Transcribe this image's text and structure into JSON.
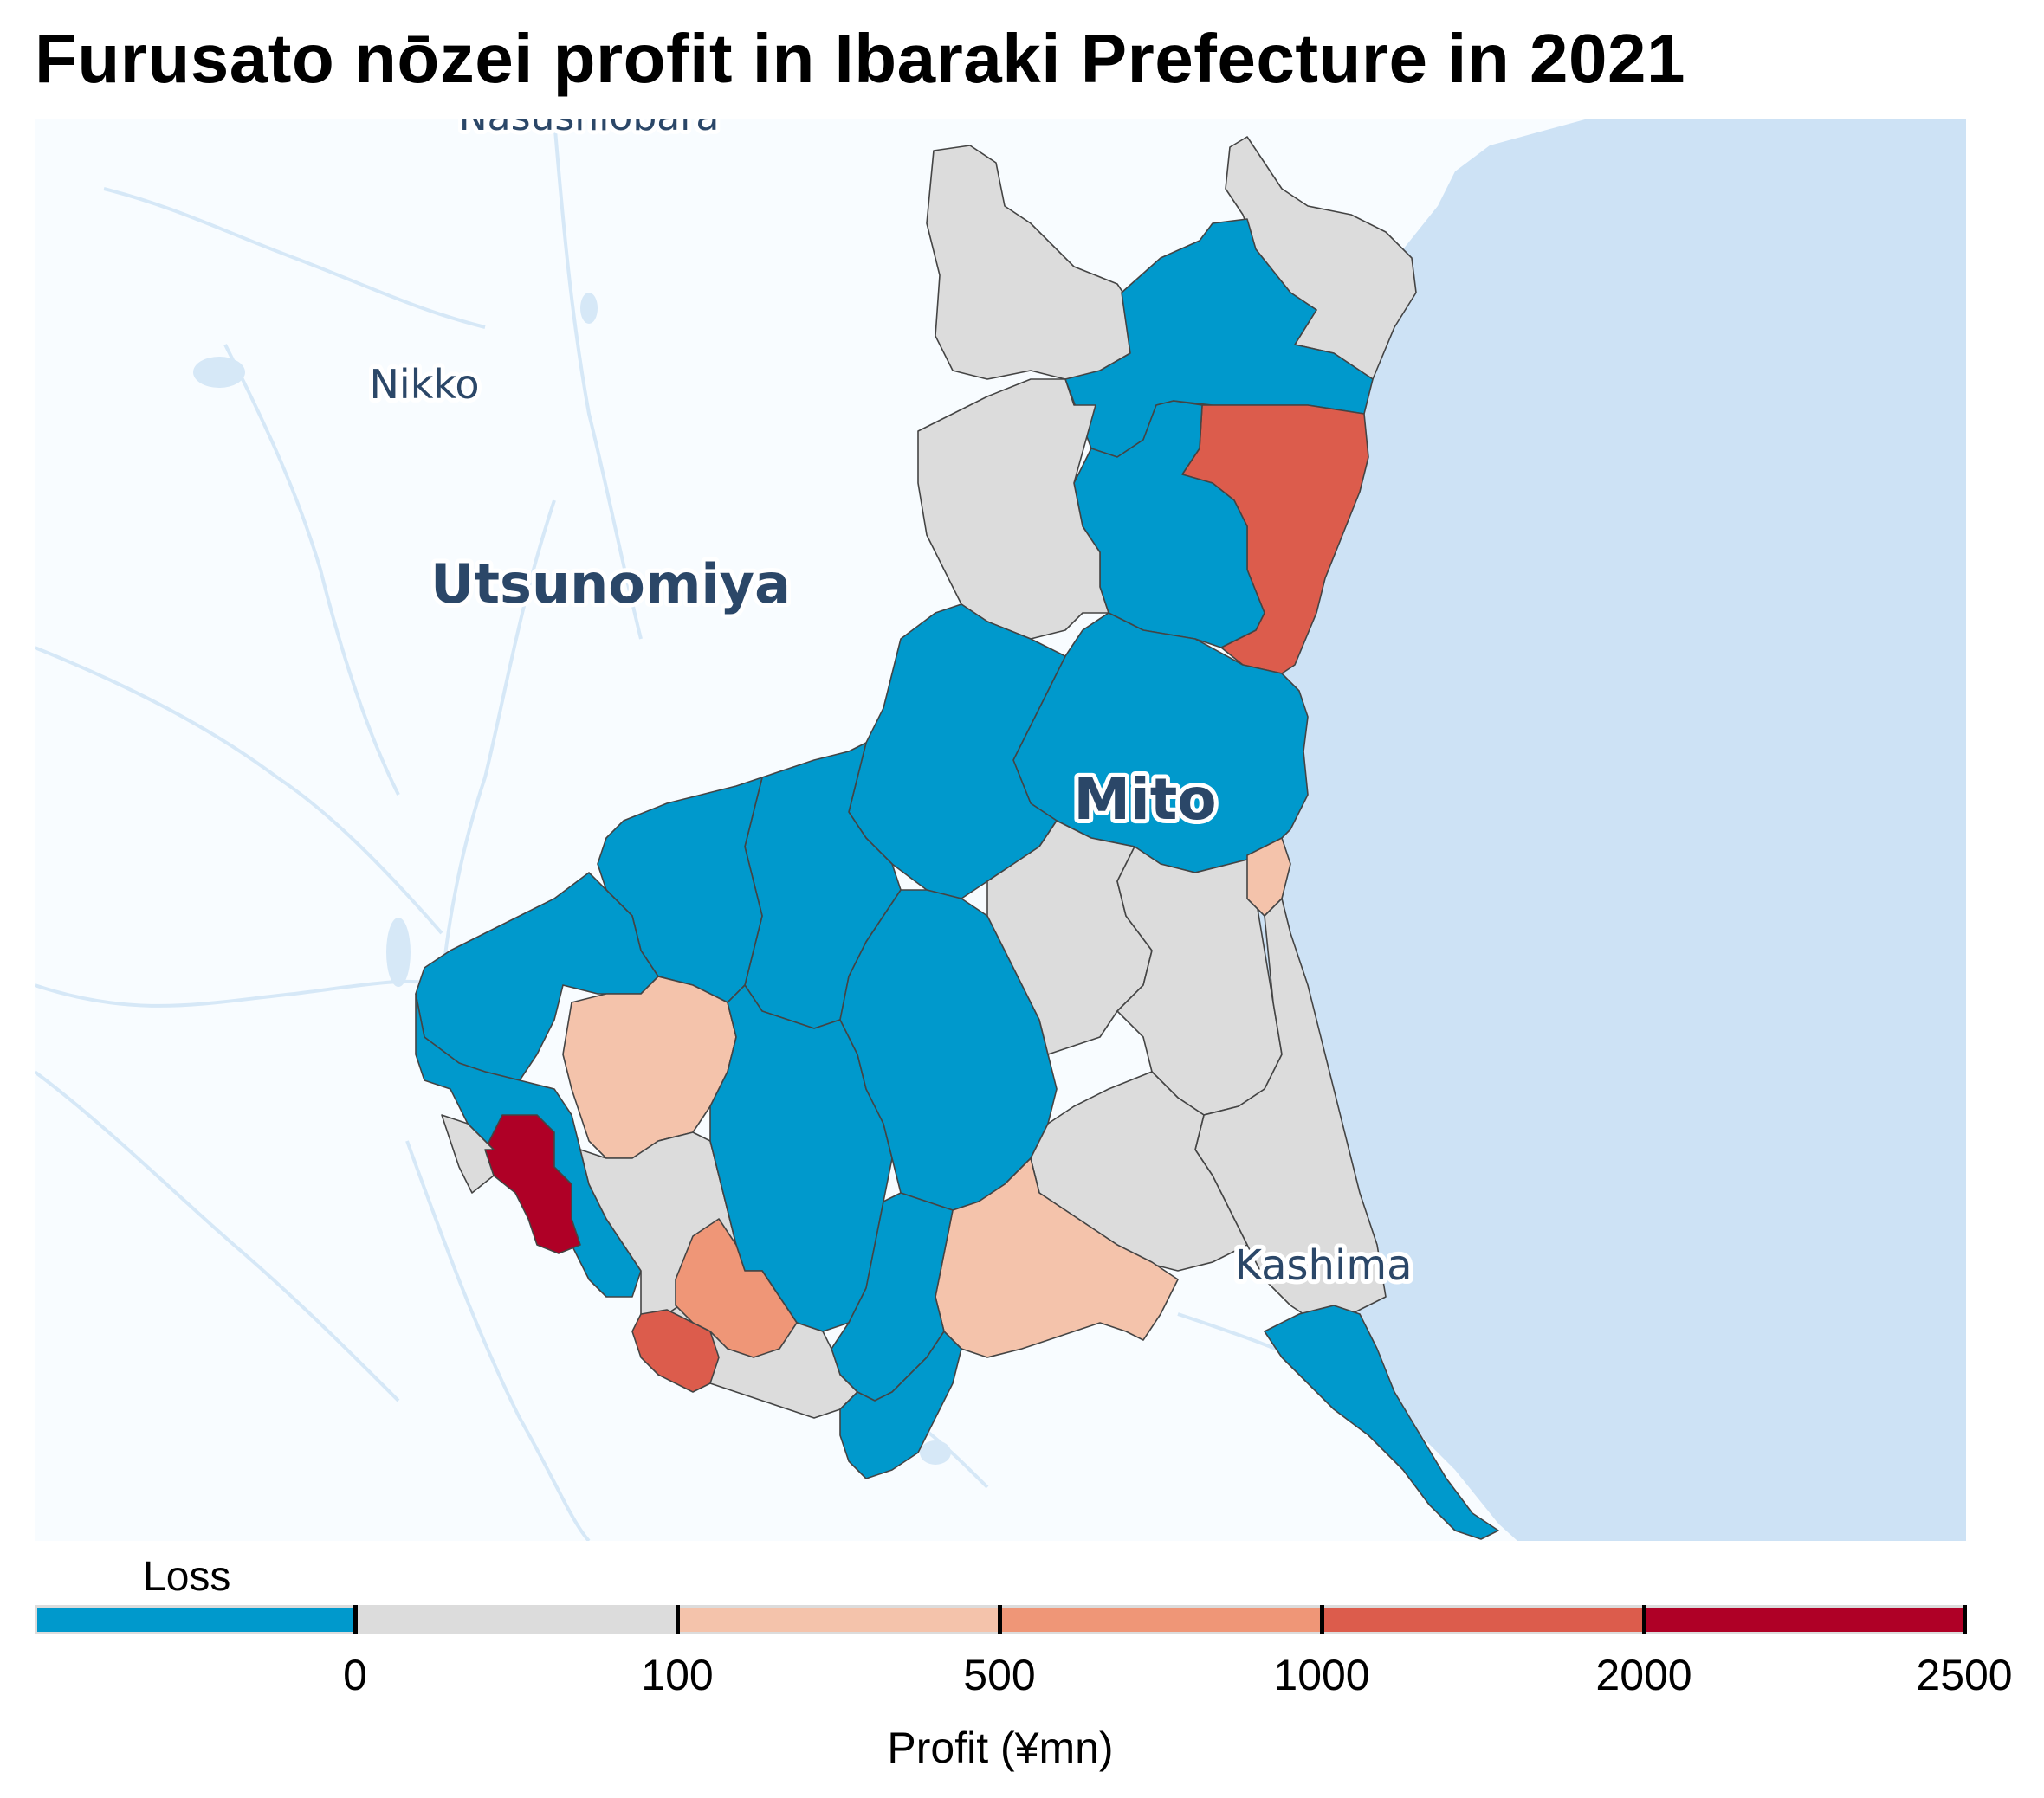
{
  "title": "Furusato nōzei profit in Ibaraki Prefecture in 2021",
  "map": {
    "basemap_labels": [
      {
        "name": "Nasushiobara",
        "key": "nasushiobara"
      },
      {
        "name": "Nikko",
        "key": "nikko"
      },
      {
        "name": "Utsunomiya",
        "key": "utsunomiya"
      },
      {
        "name": "Mito",
        "key": "mito"
      },
      {
        "name": "Kashima",
        "key": "kashima"
      }
    ],
    "colors": {
      "loss": "#0099cc",
      "0-100": "#dcdcdc",
      "100-500": "#f4c3ab",
      "500-1000": "#ef9677",
      "1000-2000": "#dc5c4c",
      "2000-2500": "#af0026",
      "land": "#f8fcff",
      "sea": "#cde2f5"
    }
  },
  "legend": {
    "loss_label": "Loss",
    "xlabel": "Profit (¥mn)",
    "ticks": [
      "0",
      "100",
      "500",
      "1000",
      "2000",
      "2500"
    ],
    "segments": [
      {
        "range": "Loss",
        "color": "#0099cc"
      },
      {
        "range": "0–100",
        "color": "#dcdcdc"
      },
      {
        "range": "100–500",
        "color": "#f4c3ab"
      },
      {
        "range": "500–1000",
        "color": "#ef9677"
      },
      {
        "range": "1000–2000",
        "color": "#dc5c4c"
      },
      {
        "range": "2000–2500",
        "color": "#af0026"
      }
    ]
  }
}
